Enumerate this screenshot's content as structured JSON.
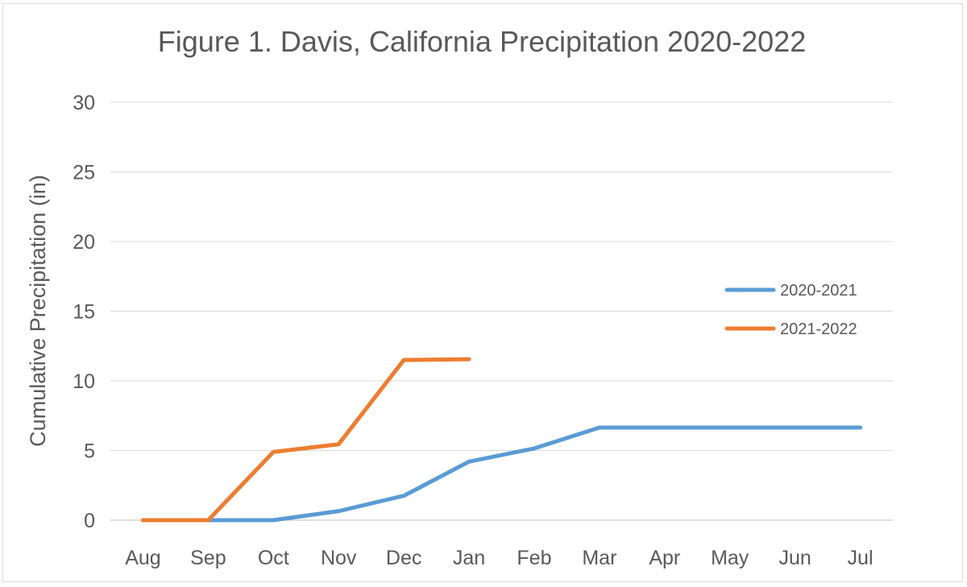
{
  "chart_data": {
    "type": "line",
    "title": "Figure 1. Davis, California Precipitation 2020-2022",
    "xlabel": "",
    "ylabel": "Cumulative Precipitation (in)",
    "categories": [
      "Aug",
      "Sep",
      "Oct",
      "Nov",
      "Dec",
      "Jan",
      "Feb",
      "Mar",
      "Apr",
      "May",
      "Jun",
      "Jul"
    ],
    "ylim": [
      0,
      30
    ],
    "yticks": [
      0,
      5,
      10,
      15,
      20,
      25,
      30
    ],
    "grid": true,
    "legend_position": "right",
    "series": [
      {
        "name": "2020-2021",
        "color": "#5b9bd5",
        "values": [
          null,
          0,
          0,
          0.65,
          1.75,
          4.2,
          5.15,
          6.65,
          6.65,
          6.65,
          6.65,
          6.65
        ]
      },
      {
        "name": "2021-2022",
        "color": "#ed7d31",
        "values": [
          0,
          0,
          4.9,
          5.45,
          11.5,
          11.55,
          null,
          null,
          null,
          null,
          null,
          null
        ]
      }
    ]
  }
}
